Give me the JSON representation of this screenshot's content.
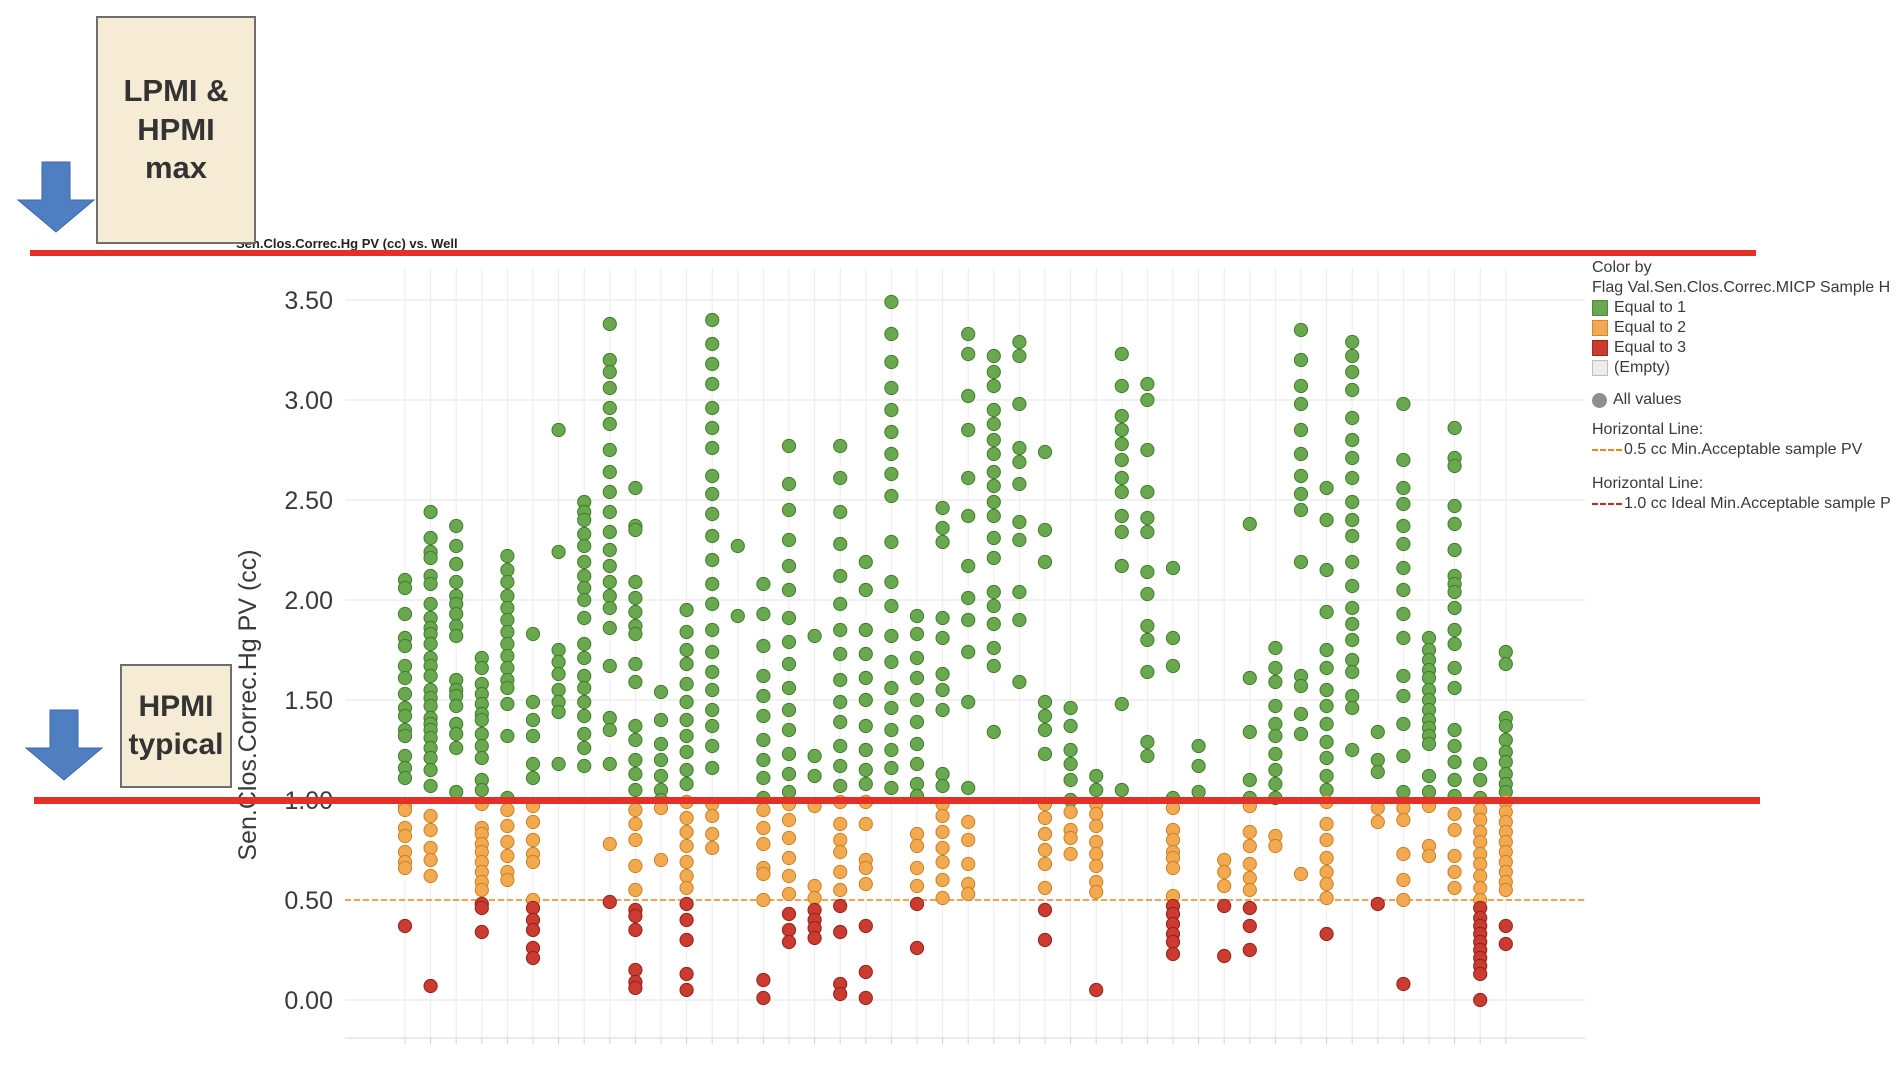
{
  "chart_data": {
    "type": "scatter",
    "title": "Sen.Clos.Correc.Hg PV (cc) vs. Well",
    "ylabel": "Sen.Clos.Correc.Hg PV (cc)",
    "xlabel": "",
    "ylim": [
      -0.18,
      3.67
    ],
    "y_ticks": [
      "0.00",
      "0.50",
      "1.00",
      "1.50",
      "2.00",
      "2.50",
      "3.00",
      "3.50"
    ],
    "grid": true,
    "legend_position": "right",
    "color_rule": "Flag Val.Sen.Clos.Correc.MICP Sample = 1 if PV >= 1.0, 2 if 0.5 <= PV < 1.0, 3 if PV < 0.5",
    "reference_lines": [
      {
        "value": 0.5,
        "label": "0.5 cc Min.Acceptable sample PV",
        "style": "dashed",
        "color": "#e8861c"
      },
      {
        "value": 1.0,
        "label": "1.0 cc Ideal Min.Acceptable sample P",
        "style": "dashed",
        "color": "#d32020"
      }
    ],
    "wells": [
      {
        "index": 1,
        "values": [
          2.1,
          2.06,
          1.93,
          1.81,
          1.77,
          1.67,
          1.61,
          1.53,
          1.46,
          1.42,
          1.35,
          1.32,
          1.22,
          1.16,
          1.11,
          0.97,
          0.95,
          0.86,
          0.82,
          0.74,
          0.69,
          0.66,
          0.37
        ]
      },
      {
        "index": 2,
        "values": [
          2.44,
          2.31,
          2.24,
          2.21,
          2.12,
          2.08,
          1.98,
          1.91,
          1.86,
          1.83,
          1.78,
          1.71,
          1.67,
          1.62,
          1.55,
          1.51,
          1.47,
          1.41,
          1.38,
          1.35,
          1.31,
          1.26,
          1.21,
          1.15,
          1.07,
          0.92,
          0.85,
          0.76,
          0.7,
          0.62,
          0.07
        ]
      },
      {
        "index": 3,
        "values": [
          2.37,
          2.27,
          2.18,
          2.09,
          2.02,
          1.98,
          1.93,
          1.87,
          1.82,
          1.6,
          1.55,
          1.52,
          1.47,
          1.38,
          1.33,
          1.26,
          1.04
        ]
      },
      {
        "index": 4,
        "values": [
          1.71,
          1.66,
          1.58,
          1.53,
          1.48,
          1.43,
          1.4,
          1.33,
          1.27,
          1.21,
          1.1,
          1.05,
          0.98,
          0.86,
          0.83,
          0.78,
          0.74,
          0.69,
          0.64,
          0.59,
          0.55,
          0.48,
          0.46,
          0.34
        ]
      },
      {
        "index": 5,
        "values": [
          2.22,
          2.15,
          2.09,
          2.02,
          1.96,
          1.9,
          1.84,
          1.78,
          1.72,
          1.66,
          1.6,
          1.56,
          1.48,
          1.32,
          1.01,
          0.95,
          0.87,
          0.79,
          0.72,
          0.64,
          0.6
        ]
      },
      {
        "index": 6,
        "values": [
          1.83,
          1.49,
          1.4,
          1.32,
          1.18,
          1.11,
          0.97,
          0.89,
          0.8,
          0.73,
          0.69,
          0.5,
          0.46,
          0.4,
          0.35,
          0.26,
          0.21
        ]
      },
      {
        "index": 7,
        "values": [
          2.85,
          2.24,
          1.75,
          1.69,
          1.63,
          1.55,
          1.49,
          1.44,
          1.18
        ]
      },
      {
        "index": 8,
        "values": [
          2.49,
          2.44,
          2.4,
          2.33,
          2.27,
          2.19,
          2.12,
          2.06,
          2.0,
          1.91,
          1.78,
          1.71,
          1.62,
          1.56,
          1.49,
          1.42,
          1.33,
          1.26,
          1.17
        ]
      },
      {
        "index": 9,
        "values": [
          3.38,
          3.2,
          3.14,
          3.06,
          2.96,
          2.88,
          2.75,
          2.64,
          2.54,
          2.44,
          2.34,
          2.25,
          2.17,
          2.09,
          2.02,
          1.96,
          1.86,
          1.67,
          1.41,
          1.35,
          1.18,
          0.78,
          0.49
        ]
      },
      {
        "index": 10,
        "values": [
          2.56,
          2.37,
          2.35,
          2.09,
          2.01,
          1.94,
          1.87,
          1.83,
          1.68,
          1.59,
          1.37,
          1.3,
          1.2,
          1.13,
          1.05,
          0.95,
          0.88,
          0.8,
          0.67,
          0.55,
          0.45,
          0.42,
          0.35,
          0.15,
          0.09,
          0.06
        ]
      },
      {
        "index": 11,
        "values": [
          1.54,
          1.4,
          1.28,
          1.2,
          1.12,
          1.05,
          1.0,
          0.96,
          0.7
        ]
      },
      {
        "index": 12,
        "values": [
          1.95,
          1.84,
          1.75,
          1.68,
          1.58,
          1.49,
          1.4,
          1.32,
          1.24,
          1.15,
          1.08,
          0.99,
          0.91,
          0.84,
          0.77,
          0.69,
          0.62,
          0.56,
          0.48,
          0.4,
          0.3,
          0.13,
          0.05
        ]
      },
      {
        "index": 13,
        "values": [
          3.4,
          3.28,
          3.18,
          3.08,
          2.96,
          2.86,
          2.76,
          2.62,
          2.53,
          2.43,
          2.32,
          2.2,
          2.08,
          1.98,
          1.85,
          1.74,
          1.64,
          1.55,
          1.45,
          1.37,
          1.27,
          1.16,
          0.98,
          0.92,
          0.83,
          0.76
        ]
      },
      {
        "index": 14,
        "values": [
          2.27,
          1.92
        ]
      },
      {
        "index": 15,
        "values": [
          2.08,
          1.93,
          1.77,
          1.62,
          1.52,
          1.42,
          1.3,
          1.2,
          1.11,
          1.01,
          0.95,
          0.86,
          0.78,
          0.66,
          0.63,
          0.5,
          0.1,
          0.01
        ]
      },
      {
        "index": 16,
        "values": [
          2.77,
          2.58,
          2.45,
          2.3,
          2.17,
          2.05,
          1.91,
          1.79,
          1.68,
          1.56,
          1.45,
          1.35,
          1.23,
          1.13,
          1.04,
          0.98,
          0.9,
          0.81,
          0.71,
          0.62,
          0.53,
          0.43,
          0.35,
          0.29
        ]
      },
      {
        "index": 17,
        "values": [
          1.82,
          1.22,
          1.12,
          0.97,
          0.57,
          0.51,
          0.45,
          0.4,
          0.36,
          0.31
        ]
      },
      {
        "index": 18,
        "values": [
          2.77,
          2.61,
          2.44,
          2.28,
          2.12,
          1.98,
          1.85,
          1.73,
          1.6,
          1.49,
          1.39,
          1.27,
          1.17,
          1.07,
          0.99,
          0.88,
          0.8,
          0.74,
          0.64,
          0.55,
          0.47,
          0.34,
          0.08,
          0.03
        ]
      },
      {
        "index": 19,
        "values": [
          2.19,
          2.05,
          1.85,
          1.73,
          1.61,
          1.5,
          1.37,
          1.25,
          1.15,
          1.08,
          0.99,
          0.88,
          0.7,
          0.66,
          0.58,
          0.37,
          0.14,
          0.01
        ]
      },
      {
        "index": 20,
        "values": [
          3.49,
          3.33,
          3.19,
          3.06,
          2.95,
          2.84,
          2.73,
          2.63,
          2.52,
          2.29,
          2.09,
          1.97,
          1.82,
          1.69,
          1.56,
          1.46,
          1.35,
          1.25,
          1.16,
          1.06
        ]
      },
      {
        "index": 21,
        "values": [
          1.92,
          1.83,
          1.71,
          1.61,
          1.5,
          1.39,
          1.28,
          1.18,
          1.08,
          1.02,
          0.83,
          0.77,
          0.66,
          0.57,
          0.48,
          0.26
        ]
      },
      {
        "index": 22,
        "values": [
          2.46,
          2.36,
          2.29,
          1.91,
          1.81,
          1.63,
          1.55,
          1.45,
          1.13,
          1.07,
          0.98,
          0.92,
          0.84,
          0.76,
          0.69,
          0.6,
          0.51
        ]
      },
      {
        "index": 23,
        "values": [
          3.33,
          3.23,
          3.02,
          2.85,
          2.61,
          2.42,
          2.17,
          2.01,
          1.9,
          1.74,
          1.49,
          1.06,
          0.89,
          0.8,
          0.68,
          0.58,
          0.53
        ]
      },
      {
        "index": 24,
        "values": [
          3.22,
          3.14,
          3.07,
          2.95,
          2.88,
          2.8,
          2.73,
          2.64,
          2.57,
          2.49,
          2.42,
          2.31,
          2.21,
          2.04,
          1.97,
          1.88,
          1.76,
          1.67,
          1.34
        ]
      },
      {
        "index": 25,
        "values": [
          3.29,
          3.22,
          2.98,
          2.76,
          2.69,
          2.58,
          2.39,
          2.3,
          2.04,
          1.9,
          1.59
        ]
      },
      {
        "index": 26,
        "values": [
          2.74,
          2.35,
          2.19,
          1.49,
          1.42,
          1.35,
          1.23,
          0.98,
          0.91,
          0.83,
          0.75,
          0.68,
          0.56,
          0.45,
          0.3
        ]
      },
      {
        "index": 27,
        "values": [
          1.46,
          1.37,
          1.25,
          1.18,
          1.1,
          1.0,
          0.94,
          0.85,
          0.81,
          0.73
        ]
      },
      {
        "index": 28,
        "values": [
          1.12,
          1.05,
          0.98,
          0.93,
          0.87,
          0.79,
          0.73,
          0.67,
          0.59,
          0.54,
          0.05
        ]
      },
      {
        "index": 29,
        "values": [
          3.23,
          3.07,
          2.92,
          2.85,
          2.78,
          2.7,
          2.61,
          2.54,
          2.42,
          2.34,
          2.17,
          1.48,
          1.05
        ]
      },
      {
        "index": 30,
        "values": [
          3.08,
          3.0,
          2.75,
          2.54,
          2.41,
          2.34,
          2.14,
          2.03,
          1.87,
          1.8,
          1.64,
          1.29,
          1.22
        ]
      },
      {
        "index": 31,
        "values": [
          2.16,
          1.81,
          1.67,
          1.01,
          0.96,
          0.85,
          0.8,
          0.74,
          0.71,
          0.66,
          0.52,
          0.47,
          0.43,
          0.38,
          0.33,
          0.29,
          0.23
        ]
      },
      {
        "index": 32,
        "values": [
          1.27,
          1.17,
          1.04
        ]
      },
      {
        "index": 33,
        "values": [
          0.7,
          0.64,
          0.57,
          0.47,
          0.22
        ]
      },
      {
        "index": 34,
        "values": [
          2.38,
          1.61,
          1.34,
          1.1,
          1.01,
          0.97,
          0.84,
          0.77,
          0.68,
          0.61,
          0.55,
          0.46,
          0.37,
          0.25
        ]
      },
      {
        "index": 35,
        "values": [
          1.76,
          1.66,
          1.59,
          1.47,
          1.38,
          1.32,
          1.23,
          1.15,
          1.08,
          1.01,
          0.82,
          0.77
        ]
      },
      {
        "index": 36,
        "values": [
          3.35,
          3.2,
          3.07,
          2.98,
          2.85,
          2.73,
          2.62,
          2.53,
          2.45,
          2.19,
          1.62,
          1.57,
          1.43,
          1.33,
          0.63
        ]
      },
      {
        "index": 37,
        "values": [
          2.56,
          2.4,
          2.15,
          1.94,
          1.75,
          1.66,
          1.55,
          1.47,
          1.38,
          1.29,
          1.21,
          1.12,
          1.05,
          0.99,
          0.88,
          0.8,
          0.71,
          0.64,
          0.58,
          0.51,
          0.33
        ]
      },
      {
        "index": 38,
        "values": [
          3.29,
          3.22,
          3.14,
          3.05,
          2.91,
          2.8,
          2.71,
          2.61,
          2.49,
          2.4,
          2.32,
          2.19,
          2.07,
          1.96,
          1.88,
          1.8,
          1.7,
          1.64,
          1.52,
          1.46,
          1.25
        ]
      },
      {
        "index": 39,
        "values": [
          1.34,
          1.2,
          1.14,
          0.96,
          0.89,
          0.48
        ]
      },
      {
        "index": 40,
        "values": [
          2.98,
          2.7,
          2.56,
          2.48,
          2.37,
          2.28,
          2.16,
          2.05,
          1.93,
          1.81,
          1.62,
          1.52,
          1.38,
          1.22,
          1.04,
          0.96,
          0.9,
          0.73,
          0.6,
          0.5,
          0.08
        ]
      },
      {
        "index": 41,
        "values": [
          1.81,
          1.75,
          1.7,
          1.65,
          1.61,
          1.55,
          1.5,
          1.45,
          1.4,
          1.36,
          1.32,
          1.28,
          1.12,
          1.04,
          0.97,
          0.77,
          0.72
        ]
      },
      {
        "index": 42,
        "values": [
          2.86,
          2.71,
          2.67,
          2.47,
          2.38,
          2.25,
          2.12,
          2.08,
          2.04,
          1.96,
          1.85,
          1.78,
          1.66,
          1.56,
          1.35,
          1.27,
          1.19,
          1.1,
          1.02,
          0.93,
          0.85,
          0.72,
          0.64,
          0.56
        ]
      },
      {
        "index": 43,
        "values": [
          1.18,
          1.1,
          1.01,
          0.95,
          0.9,
          0.84,
          0.79,
          0.73,
          0.68,
          0.62,
          0.56,
          0.5,
          0.46,
          0.41,
          0.37,
          0.33,
          0.29,
          0.25,
          0.21,
          0.17,
          0.13,
          0.0
        ]
      },
      {
        "index": 44,
        "values": [
          1.74,
          1.68,
          1.41,
          1.37,
          1.3,
          1.24,
          1.19,
          1.13,
          1.08,
          1.04,
          0.99,
          0.94,
          0.89,
          0.84,
          0.79,
          0.74,
          0.69,
          0.64,
          0.59,
          0.55,
          0.37,
          0.28
        ]
      }
    ]
  },
  "header": {
    "chart_title": "Sen.Clos.Correc.Hg PV (cc) vs. Well"
  },
  "callouts": {
    "top_lines": [
      "LPMI &",
      "HPMI",
      "max"
    ],
    "bottom_lines": [
      "HPMI",
      "typical"
    ]
  },
  "legend": {
    "color_by_label": "Color by",
    "color_by_column": "Flag Val.Sen.Clos.Correc.MICP  Sample H",
    "items": [
      {
        "label": "Equal to 1",
        "color": "#6aa84f"
      },
      {
        "label": "Equal to 2",
        "color": "#f2a950"
      },
      {
        "label": "Equal to 3",
        "color": "#cc3b2f"
      },
      {
        "label": "(Empty)",
        "color": "#ececec"
      }
    ],
    "shape_label": "All values",
    "hline1_title": "Horizontal Line:",
    "hline1_label": "0.5 cc Min.Acceptable sample PV",
    "hline2_title": "Horizontal Line:",
    "hline2_label": "1.0 cc Ideal Min.Acceptable sample P"
  },
  "colors": {
    "green": "#6aa84f",
    "orange": "#f2a950",
    "red": "#cc3b2f",
    "annotation_red": "#e5302a",
    "arrow_blue": "#4f7ec1"
  }
}
